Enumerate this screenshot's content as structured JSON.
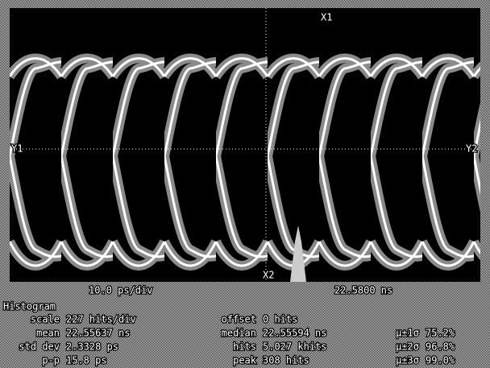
{
  "status_bar": {
    "scale": "10.0 ps/div",
    "position": "22.5800 ns"
  },
  "markers": {
    "x1": "X1",
    "x2": "X2",
    "y1": "Y1",
    "y2": "Y2"
  },
  "histogram": {
    "title": "Histogram",
    "rows": [
      [
        [
          "scale",
          "227 hits/div"
        ],
        [
          "offset",
          "0 hits"
        ]
      ],
      [
        [
          "mean",
          "22.55637 ns"
        ],
        [
          "median",
          "22.55594 ns"
        ],
        [
          "µ±1σ",
          "75.2%"
        ]
      ],
      [
        [
          "std dev",
          "2.3328 ps"
        ],
        [
          "hits",
          "5.027 khits"
        ],
        [
          "µ±2σ",
          "96.8%"
        ]
      ],
      [
        [
          "p-p",
          "15.8 ps"
        ],
        [
          "peak",
          "308 hits"
        ],
        [
          "µ±3σ",
          "99.0%"
        ]
      ]
    ]
  }
}
